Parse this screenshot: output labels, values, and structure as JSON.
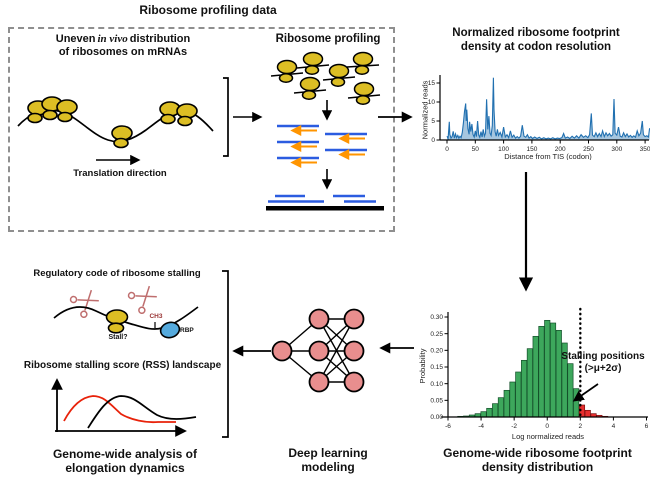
{
  "figure": {
    "top_box": {
      "title": "Ribosome profiling data",
      "left": {
        "heading_pre": "Uneven",
        "heading_italic": "in vivo",
        "heading_post": "distribution",
        "heading_line2": "of ribosomes on mRNAs",
        "translation_label": "Translation direction"
      },
      "right": {
        "heading": "Ribosome profiling"
      }
    },
    "footprint_chart": {
      "title_line1": "Normalized ribosome footprint",
      "title_line2": "density at codon resolution"
    },
    "histogram_section": {
      "annotation_line1": "Stalling positions",
      "annotation_line2": "(>μ+2σ)",
      "caption_line1": "Genome-wide ribosome footprint",
      "caption_line2": "density distribution"
    },
    "network": {
      "caption_line1": "Deep learning",
      "caption_line2": "modeling"
    },
    "bottom_left": {
      "heading_regulatory": "Regulatory code of ribosome stalling",
      "stall_label": "Stall?",
      "ch3_label": "CH3",
      "rbp_label": "RBP",
      "heading_rss": "Ribosome stalling score (RSS) landscape",
      "caption_line1": "Genome-wide analysis of",
      "caption_line2": "elongation dynamics"
    },
    "colors": {
      "ribosome_yellow": "#dcbe24",
      "read_blue": "#2b5ce0",
      "read_orange": "#ff9500",
      "line_blue": "#2170b0",
      "hist_green": "#3da75c",
      "hist_red": "#e62e2e",
      "node_pink": "#e88e8e",
      "scissors_pink": "#bf6e6e",
      "rbp_blue": "#55aadd",
      "ch3_maroon": "#993333",
      "rss_red_curve": "#e8220a"
    }
  },
  "chart_data": [
    {
      "type": "line",
      "title": "Normalized ribosome footprint density at codon resolution",
      "xlabel": "Distance from TIS (codon)",
      "ylabel": "Normalized reads",
      "xticks": [
        0,
        50,
        100,
        150,
        200,
        250,
        300,
        350
      ],
      "yticks": [
        0,
        5,
        10,
        15
      ],
      "xlim": [
        0,
        360
      ],
      "ylim": [
        0,
        17
      ],
      "color": "#2170b0",
      "points": [
        [
          0,
          1.0
        ],
        [
          2,
          0.4
        ],
        [
          4,
          4.8
        ],
        [
          5,
          1.5
        ],
        [
          7,
          0.5
        ],
        [
          9,
          0.9
        ],
        [
          11,
          2.3
        ],
        [
          13,
          0.5
        ],
        [
          15,
          1.6
        ],
        [
          17,
          0.6
        ],
        [
          19,
          1.2
        ],
        [
          21,
          0.5
        ],
        [
          23,
          1.0
        ],
        [
          25,
          0.6
        ],
        [
          27,
          2.0
        ],
        [
          29,
          4.5
        ],
        [
          31,
          7.5
        ],
        [
          33,
          9.6
        ],
        [
          34,
          5.0
        ],
        [
          35,
          8.0
        ],
        [
          37,
          3.0
        ],
        [
          39,
          1.5
        ],
        [
          40,
          4.8
        ],
        [
          42,
          2.2
        ],
        [
          44,
          4.2
        ],
        [
          46,
          1.5
        ],
        [
          48,
          0.8
        ],
        [
          50,
          2.4
        ],
        [
          52,
          0.9
        ],
        [
          54,
          5.0
        ],
        [
          56,
          1.3
        ],
        [
          58,
          0.7
        ],
        [
          60,
          2.2
        ],
        [
          62,
          0.8
        ],
        [
          64,
          2.8
        ],
        [
          66,
          1.0
        ],
        [
          68,
          1.8
        ],
        [
          70,
          10.7
        ],
        [
          72,
          2.8
        ],
        [
          74,
          6.3
        ],
        [
          76,
          1.8
        ],
        [
          78,
          1.2
        ],
        [
          80,
          3.8
        ],
        [
          82,
          16.4
        ],
        [
          83,
          8.0
        ],
        [
          85,
          2.2
        ],
        [
          87,
          1.0
        ],
        [
          89,
          2.8
        ],
        [
          91,
          1.2
        ],
        [
          94,
          2.0
        ],
        [
          97,
          0.8
        ],
        [
          100,
          3.4
        ],
        [
          103,
          0.8
        ],
        [
          106,
          1.4
        ],
        [
          109,
          0.6
        ],
        [
          112,
          2.4
        ],
        [
          115,
          0.7
        ],
        [
          118,
          1.3
        ],
        [
          121,
          0.5
        ],
        [
          124,
          0.9
        ],
        [
          127,
          0.5
        ],
        [
          130,
          1.0
        ],
        [
          133,
          3.9
        ],
        [
          136,
          1.0
        ],
        [
          139,
          0.7
        ],
        [
          142,
          1.4
        ],
        [
          145,
          0.5
        ],
        [
          148,
          0.9
        ],
        [
          151,
          0.4
        ],
        [
          155,
          0.8
        ],
        [
          159,
          0.4
        ],
        [
          163,
          0.7
        ],
        [
          167,
          0.3
        ],
        [
          171,
          0.6
        ],
        [
          175,
          0.3
        ],
        [
          179,
          0.5
        ],
        [
          183,
          0.3
        ],
        [
          187,
          0.6
        ],
        [
          191,
          0.3
        ],
        [
          195,
          0.5
        ],
        [
          199,
          0.4
        ],
        [
          203,
          0.6
        ],
        [
          206,
          1.7
        ],
        [
          209,
          0.5
        ],
        [
          213,
          0.8
        ],
        [
          217,
          0.4
        ],
        [
          221,
          1.0
        ],
        [
          225,
          0.5
        ],
        [
          229,
          1.1
        ],
        [
          233,
          0.5
        ],
        [
          237,
          1.4
        ],
        [
          241,
          0.7
        ],
        [
          245,
          1.1
        ],
        [
          249,
          0.6
        ],
        [
          252,
          1.4
        ],
        [
          255,
          7.0
        ],
        [
          257,
          1.3
        ],
        [
          260,
          0.9
        ],
        [
          263,
          1.9
        ],
        [
          266,
          0.9
        ],
        [
          269,
          1.7
        ],
        [
          272,
          0.9
        ],
        [
          275,
          2.4
        ],
        [
          278,
          0.9
        ],
        [
          281,
          1.9
        ],
        [
          284,
          1.1
        ],
        [
          287,
          1.7
        ],
        [
          290,
          1.0
        ],
        [
          293,
          1.4
        ],
        [
          295,
          10.8
        ],
        [
          297,
          1.8
        ],
        [
          300,
          1.3
        ],
        [
          303,
          3.4
        ],
        [
          306,
          1.0
        ],
        [
          309,
          0.8
        ],
        [
          312,
          1.9
        ],
        [
          315,
          0.9
        ],
        [
          318,
          1.6
        ],
        [
          321,
          0.8
        ],
        [
          324,
          1.2
        ],
        [
          327,
          0.7
        ],
        [
          330,
          1.1
        ],
        [
          333,
          0.7
        ],
        [
          336,
          2.4
        ],
        [
          339,
          1.1
        ],
        [
          342,
          1.8
        ],
        [
          345,
          5.0
        ],
        [
          347,
          1.4
        ],
        [
          350,
          0.9
        ],
        [
          353,
          1.1
        ],
        [
          356,
          0.8
        ],
        [
          358,
          3.1
        ]
      ]
    },
    {
      "type": "bar",
      "title": "Genome-wide ribosome footprint density distribution",
      "xlabel": "Log normalized reads",
      "ylabel": "Probability",
      "xticks": [
        -6,
        -4,
        -2,
        0,
        2,
        4,
        6
      ],
      "yticks": [
        0.0,
        0.05,
        0.1,
        0.15,
        0.2,
        0.25,
        0.3
      ],
      "xlim": [
        -6.6,
        6.2
      ],
      "ylim": [
        0,
        0.31
      ],
      "threshold_x": 2,
      "bin_width": 0.35,
      "green_color": "#3da75c",
      "red_color": "#e62e2e",
      "bins": [
        {
          "x": -5.25,
          "p": 0.002,
          "c": "g"
        },
        {
          "x": -4.9,
          "p": 0.003,
          "c": "g"
        },
        {
          "x": -4.55,
          "p": 0.006,
          "c": "g"
        },
        {
          "x": -4.2,
          "p": 0.01,
          "c": "g"
        },
        {
          "x": -3.85,
          "p": 0.016,
          "c": "g"
        },
        {
          "x": -3.5,
          "p": 0.026,
          "c": "g"
        },
        {
          "x": -3.15,
          "p": 0.04,
          "c": "g"
        },
        {
          "x": -2.8,
          "p": 0.058,
          "c": "g"
        },
        {
          "x": -2.45,
          "p": 0.08,
          "c": "g"
        },
        {
          "x": -2.1,
          "p": 0.105,
          "c": "g"
        },
        {
          "x": -1.75,
          "p": 0.135,
          "c": "g"
        },
        {
          "x": -1.4,
          "p": 0.17,
          "c": "g"
        },
        {
          "x": -1.05,
          "p": 0.205,
          "c": "g"
        },
        {
          "x": -0.7,
          "p": 0.242,
          "c": "g"
        },
        {
          "x": -0.35,
          "p": 0.272,
          "c": "g"
        },
        {
          "x": 0.0,
          "p": 0.29,
          "c": "g"
        },
        {
          "x": 0.35,
          "p": 0.282,
          "c": "g"
        },
        {
          "x": 0.7,
          "p": 0.26,
          "c": "g"
        },
        {
          "x": 1.05,
          "p": 0.222,
          "c": "g"
        },
        {
          "x": 1.4,
          "p": 0.16,
          "c": "g"
        },
        {
          "x": 1.75,
          "p": 0.085,
          "c": "g"
        },
        {
          "x": 2.1,
          "p": 0.036,
          "c": "r"
        },
        {
          "x": 2.45,
          "p": 0.02,
          "c": "r"
        },
        {
          "x": 2.8,
          "p": 0.01,
          "c": "r"
        },
        {
          "x": 3.15,
          "p": 0.005,
          "c": "r"
        },
        {
          "x": 3.5,
          "p": 0.002,
          "c": "r"
        }
      ]
    }
  ]
}
